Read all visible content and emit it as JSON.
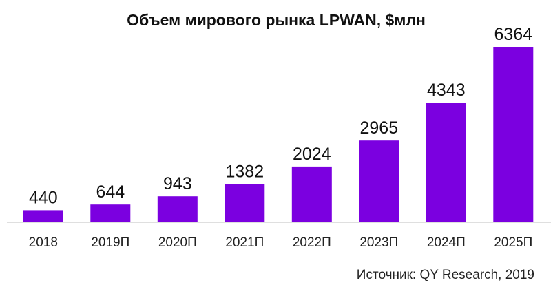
{
  "chart_data": {
    "type": "bar",
    "title": "Объем мирового рынка LPWAN, $млн",
    "categories": [
      "2018",
      "2019П",
      "2020П",
      "2021П",
      "2022П",
      "2023П",
      "2024П",
      "2025П"
    ],
    "values": [
      440,
      644,
      943,
      1382,
      2024,
      2965,
      4343,
      6364
    ],
    "data_labels": [
      "440",
      "644",
      "943",
      "1382",
      "2024",
      "2965",
      "4343",
      "6364"
    ],
    "xlabel": "",
    "ylabel": "",
    "ylim": [
      0,
      6364
    ],
    "grid": false,
    "legend": "none",
    "bar_color": "#7B00E0",
    "source": "Источник: QY Research, 2019"
  }
}
